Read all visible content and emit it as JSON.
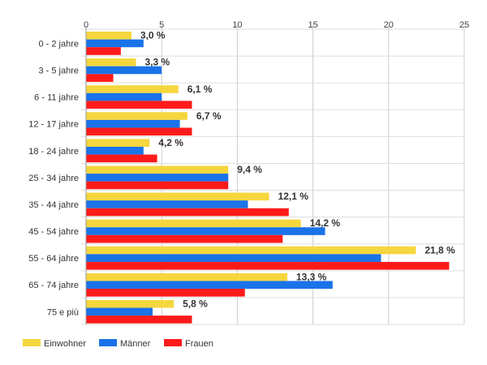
{
  "chart_data": {
    "type": "bar",
    "orientation": "horizontal",
    "categories": [
      "0 - 2 jahre",
      "3 - 5 jahre",
      "6 - 11 jahre",
      "12 - 17 jahre",
      "18 - 24 jahre",
      "25 - 34 jahre",
      "35 - 44 jahre",
      "45 - 54 jahre",
      "55 - 64 jahre",
      "65 - 74 jahre",
      "75 e più"
    ],
    "series": [
      {
        "name": "Einwohner",
        "color": "#f5d63d",
        "values": [
          3.0,
          3.3,
          6.1,
          6.7,
          4.2,
          9.4,
          12.1,
          14.2,
          21.8,
          13.3,
          5.8
        ]
      },
      {
        "name": "Männer",
        "color": "#1a73e8",
        "values": [
          3.8,
          5.0,
          5.0,
          6.2,
          3.8,
          9.4,
          10.7,
          15.8,
          19.5,
          16.3,
          4.4
        ]
      },
      {
        "name": "Frauen",
        "color": "#ff1a1a",
        "values": [
          2.3,
          1.8,
          7.0,
          7.0,
          4.7,
          9.4,
          13.4,
          13.0,
          24.0,
          10.5,
          7.0
        ]
      }
    ],
    "data_labels": [
      "3,0 %",
      "3,3 %",
      "6,1 %",
      "6,7 %",
      "4,2 %",
      "9,4 %",
      "12,1 %",
      "14,2 %",
      "21,8 %",
      "13,3 %",
      "5,8 %"
    ],
    "xlim": [
      0,
      25
    ],
    "xticks": [
      "0",
      "5",
      "10",
      "15",
      "20",
      "25"
    ],
    "x_axis_position": "top",
    "grid": true,
    "legend_position": "bottom-left",
    "title": "",
    "xlabel": "",
    "ylabel": ""
  }
}
